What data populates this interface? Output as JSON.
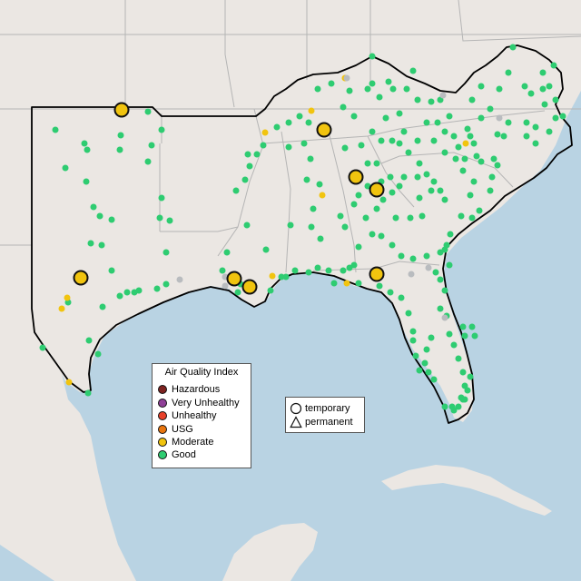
{
  "legend": {
    "title": "Air Quality Index",
    "categories": [
      {
        "label": "Hazardous",
        "color": "#7e2321"
      },
      {
        "label": "Very Unhealthy",
        "color": "#8f3f97"
      },
      {
        "label": "Unhealthy",
        "color": "#e8412a"
      },
      {
        "label": "USG",
        "color": "#e8750e"
      },
      {
        "label": "Moderate",
        "color": "#f1c40f"
      },
      {
        "label": "Good",
        "color": "#2ecc71"
      }
    ]
  },
  "shape_legend": {
    "temporary": "temporary",
    "permanent": "permanent"
  },
  "colors": {
    "ocean": "#b9d3e3",
    "land": "#ebe7e3",
    "state_border": "#b5b5b5",
    "region_outline": "#000000",
    "offline": "#b9bcbf",
    "good": "#2ecc71",
    "moderate": "#f1c40f"
  }
}
